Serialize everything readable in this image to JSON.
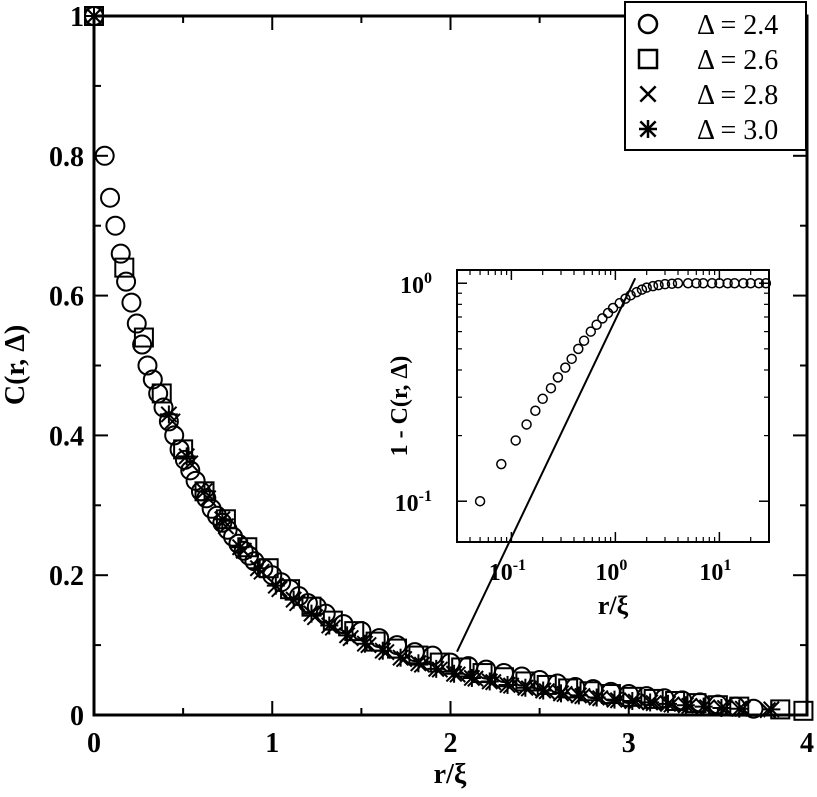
{
  "chart_data": [
    {
      "type": "scatter",
      "xlabel": "r/ξ",
      "ylabel": "C(r, Δ)",
      "xlim": [
        0,
        4
      ],
      "ylim": [
        0,
        1
      ],
      "xticks": [
        0,
        1,
        2,
        3,
        4
      ],
      "xtick_labels": [
        "0",
        "1",
        "2",
        "3",
        "4"
      ],
      "yticks": [
        0,
        0.2,
        0.4,
        0.6,
        0.8,
        1.0
      ],
      "ytick_labels": [
        "0",
        "0.2",
        "0.4",
        "0.6",
        "0.8",
        "1"
      ],
      "grid": false,
      "legend_position": "top-right",
      "series": [
        {
          "name": "Δ = 2.4",
          "marker": "circle",
          "x": [
            0.0,
            0.06,
            0.09,
            0.12,
            0.15,
            0.18,
            0.21,
            0.24,
            0.27,
            0.3,
            0.33,
            0.36,
            0.39,
            0.42,
            0.45,
            0.48,
            0.51,
            0.54,
            0.57,
            0.6,
            0.63,
            0.66,
            0.69,
            0.72,
            0.75,
            0.78,
            0.81,
            0.84,
            0.87,
            0.9,
            0.95,
            1.0,
            1.05,
            1.1,
            1.15,
            1.2,
            1.25,
            1.3,
            1.4,
            1.5,
            1.6,
            1.7,
            1.8,
            1.9,
            2.0,
            2.1,
            2.2,
            2.3,
            2.4,
            2.5,
            2.6,
            2.7,
            2.8,
            2.9,
            3.0,
            3.1,
            3.2,
            3.3,
            3.4,
            3.5,
            3.6,
            3.7
          ],
          "y": [
            1.0,
            0.8,
            0.74,
            0.7,
            0.66,
            0.62,
            0.59,
            0.56,
            0.53,
            0.5,
            0.48,
            0.46,
            0.44,
            0.42,
            0.4,
            0.38,
            0.365,
            0.35,
            0.335,
            0.32,
            0.31,
            0.295,
            0.285,
            0.275,
            0.265,
            0.255,
            0.245,
            0.235,
            0.228,
            0.22,
            0.21,
            0.2,
            0.19,
            0.18,
            0.17,
            0.16,
            0.155,
            0.145,
            0.13,
            0.12,
            0.11,
            0.1,
            0.09,
            0.085,
            0.075,
            0.07,
            0.065,
            0.06,
            0.055,
            0.05,
            0.045,
            0.04,
            0.037,
            0.033,
            0.03,
            0.027,
            0.024,
            0.021,
            0.018,
            0.015,
            0.012,
            0.009
          ]
        },
        {
          "name": "Δ = 2.6",
          "marker": "square",
          "x": [
            0.0,
            0.17,
            0.28,
            0.38,
            0.5,
            0.62,
            0.74,
            0.86,
            0.98,
            1.1,
            1.22,
            1.34,
            1.46,
            1.58,
            1.7,
            1.82,
            1.94,
            2.06,
            2.18,
            2.3,
            2.42,
            2.54,
            2.66,
            2.78,
            2.9,
            3.02,
            3.14,
            3.26,
            3.38,
            3.5,
            3.62,
            3.85,
            3.98
          ],
          "y": [
            1.0,
            0.64,
            0.54,
            0.46,
            0.38,
            0.32,
            0.28,
            0.24,
            0.21,
            0.18,
            0.155,
            0.135,
            0.12,
            0.105,
            0.095,
            0.085,
            0.075,
            0.068,
            0.06,
            0.054,
            0.048,
            0.043,
            0.038,
            0.034,
            0.03,
            0.026,
            0.023,
            0.02,
            0.017,
            0.014,
            0.012,
            0.008,
            0.006
          ]
        },
        {
          "name": "Δ = 2.8",
          "marker": "x",
          "x": [
            0.0,
            0.44,
            0.54,
            0.64,
            0.74,
            0.84,
            0.94,
            1.04,
            1.14,
            1.24,
            1.34,
            1.44,
            1.54,
            1.64,
            1.74,
            1.84,
            1.94,
            2.04,
            2.14,
            2.24,
            2.34,
            2.44,
            2.54,
            2.64,
            2.74,
            2.84,
            2.94,
            3.04,
            3.14,
            3.24,
            3.34,
            3.44,
            3.54,
            3.64,
            3.78
          ],
          "y": [
            1.0,
            0.42,
            0.36,
            0.31,
            0.27,
            0.235,
            0.205,
            0.18,
            0.16,
            0.14,
            0.125,
            0.11,
            0.1,
            0.09,
            0.08,
            0.072,
            0.065,
            0.058,
            0.052,
            0.047,
            0.042,
            0.038,
            0.034,
            0.03,
            0.027,
            0.024,
            0.021,
            0.019,
            0.017,
            0.015,
            0.013,
            0.011,
            0.01,
            0.009,
            0.007
          ]
        },
        {
          "name": "Δ = 3.0",
          "marker": "asterisk",
          "x": [
            0.0,
            0.42,
            0.52,
            0.62,
            0.72,
            0.82,
            0.92,
            1.02,
            1.12,
            1.22,
            1.32,
            1.42,
            1.52,
            1.62,
            1.72,
            1.82,
            1.92,
            2.02,
            2.12,
            2.22,
            2.32,
            2.42,
            2.52,
            2.62,
            2.72,
            2.82,
            2.92,
            3.02,
            3.12,
            3.22,
            3.32,
            3.42,
            3.52,
            3.62,
            3.8
          ],
          "y": [
            1.0,
            0.43,
            0.37,
            0.32,
            0.28,
            0.24,
            0.21,
            0.185,
            0.165,
            0.145,
            0.128,
            0.114,
            0.102,
            0.092,
            0.082,
            0.074,
            0.066,
            0.059,
            0.053,
            0.048,
            0.043,
            0.039,
            0.035,
            0.031,
            0.028,
            0.025,
            0.022,
            0.02,
            0.018,
            0.016,
            0.014,
            0.012,
            0.01,
            0.009,
            0.008
          ]
        }
      ]
    },
    {
      "type": "scatter",
      "scale": "log-log",
      "xlabel": "r/ξ",
      "ylabel": "1 - C(r, Δ)",
      "xlim": [
        0.03,
        30
      ],
      "ylim": [
        0.065,
        1.15
      ],
      "xticks": [
        0.1,
        1,
        10
      ],
      "xtick_labels": [
        {
          "base": "10",
          "exp": "-1"
        },
        {
          "base": "10",
          "exp": "0"
        },
        {
          "base": "10",
          "exp": "1"
        }
      ],
      "yticks": [
        0.1,
        1
      ],
      "ytick_labels": [
        {
          "base": "10",
          "exp": "-1"
        },
        {
          "base": "10",
          "exp": "0"
        }
      ],
      "fit_line": {
        "slope": 1,
        "prefactor": 0.68
      },
      "series": [
        {
          "marker": "circle",
          "x": [
            0.05,
            0.08,
            0.11,
            0.14,
            0.17,
            0.2,
            0.24,
            0.28,
            0.33,
            0.38,
            0.44,
            0.5,
            0.58,
            0.66,
            0.75,
            0.85,
            0.95,
            1.1,
            1.25,
            1.4,
            1.6,
            1.8,
            2.0,
            2.3,
            2.6,
            3.0,
            3.5,
            4.0,
            5.0,
            6.0,
            7.0,
            8.5,
            10,
            12,
            14,
            17,
            20,
            24,
            28
          ],
          "y": [
            0.1,
            0.148,
            0.19,
            0.225,
            0.26,
            0.295,
            0.33,
            0.37,
            0.41,
            0.45,
            0.5,
            0.545,
            0.6,
            0.645,
            0.69,
            0.73,
            0.77,
            0.81,
            0.85,
            0.88,
            0.91,
            0.935,
            0.955,
            0.97,
            0.98,
            0.99,
            0.995,
            1.0,
            1.0,
            1.0,
            1.0,
            1.0,
            1.0,
            1.0,
            1.0,
            1.0,
            1.0,
            1.0,
            1.0
          ]
        }
      ]
    }
  ]
}
